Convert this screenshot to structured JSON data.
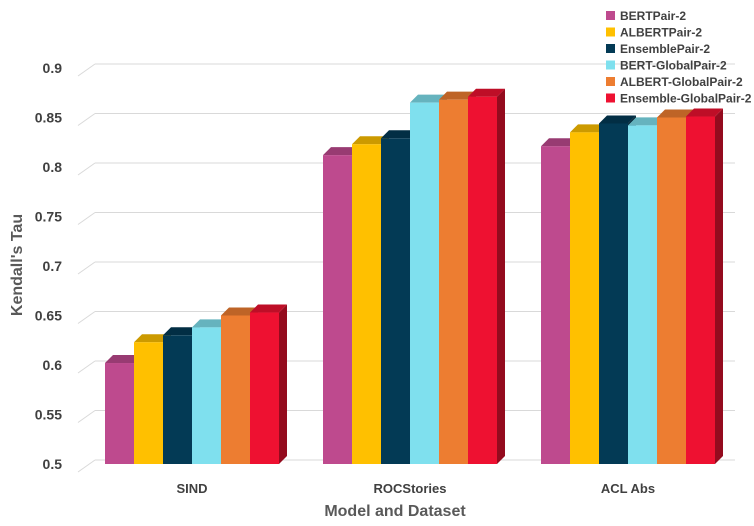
{
  "chart_data": {
    "type": "bar",
    "title": "",
    "xlabel": "Model and Dataset",
    "ylabel": "Kendall's Tau",
    "ylim": [
      0.5,
      0.9
    ],
    "yticks": [
      0.5,
      0.55,
      0.6,
      0.65,
      0.7,
      0.75,
      0.8,
      0.85,
      0.9
    ],
    "grid": true,
    "legend_position": "top-right",
    "categories": [
      "SIND",
      "ROCStories",
      "ACL Abs"
    ],
    "series": [
      {
        "name": "BERTPair-2",
        "color": "#BE4A8E",
        "values": [
          0.602,
          0.812,
          0.821
        ]
      },
      {
        "name": "ALBERTPair-2",
        "color": "#FFC000",
        "values": [
          0.623,
          0.823,
          0.835
        ]
      },
      {
        "name": "EnsemblePair-2",
        "color": "#033A55",
        "values": [
          0.63,
          0.829,
          0.844
        ]
      },
      {
        "name": "BERT-GlobalPair-2",
        "color": "#7FE0EE",
        "values": [
          0.638,
          0.865,
          0.842
        ]
      },
      {
        "name": "ALBERT-GlobalPair-2",
        "color": "#ED7D31",
        "values": [
          0.65,
          0.868,
          0.85
        ]
      },
      {
        "name": "Ensemble-GlobalPair-2",
        "color": "#EE1131",
        "values": [
          0.653,
          0.871,
          0.851
        ]
      }
    ]
  }
}
